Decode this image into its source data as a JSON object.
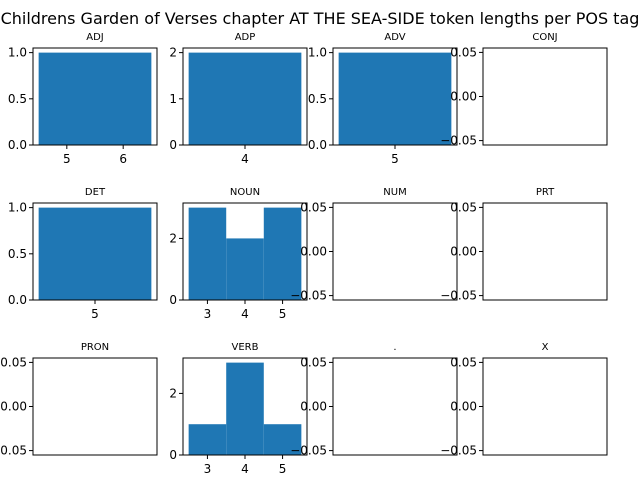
{
  "figure": {
    "title": "Childrens Garden of Verses chapter AT THE SEA-SIDE token lengths per POS tag"
  },
  "colors": {
    "bar": "#1f77b4",
    "axes": "#000000",
    "background": "#ffffff"
  },
  "chart_data": [
    {
      "type": "bar",
      "title": "ADJ",
      "bins": [
        4.5,
        5.5,
        6.5
      ],
      "counts": [
        1,
        1
      ],
      "xticks": [
        5,
        6
      ],
      "yticks": [
        0.0,
        0.5,
        1.0
      ],
      "ytick_labels": [
        "0.0",
        "0.5",
        "1.0"
      ],
      "xlim": [
        4.4,
        6.6
      ],
      "ylim": [
        0,
        1.05
      ]
    },
    {
      "type": "bar",
      "title": "ADP",
      "bins": [
        3.5,
        4.5
      ],
      "counts": [
        2
      ],
      "xticks": [
        4
      ],
      "yticks": [
        0,
        1,
        2
      ],
      "ytick_labels": [
        "0",
        "1",
        "2"
      ],
      "xlim": [
        3.45,
        4.55
      ],
      "ylim": [
        0,
        2.1
      ]
    },
    {
      "type": "bar",
      "title": "ADV",
      "bins": [
        4.5,
        5.5
      ],
      "counts": [
        1
      ],
      "xticks": [
        5
      ],
      "yticks": [
        0.0,
        0.5,
        1.0
      ],
      "ytick_labels": [
        "0.0",
        "0.5",
        "1.0"
      ],
      "xlim": [
        4.45,
        5.55
      ],
      "ylim": [
        0,
        1.05
      ]
    },
    {
      "type": "bar",
      "title": "CONJ",
      "bins": [],
      "counts": [],
      "xticks": [],
      "yticks": [
        -0.05,
        0.0,
        0.05
      ],
      "ytick_labels": [
        "−0.05",
        "0.00",
        "0.05"
      ],
      "xlim": [
        0,
        1
      ],
      "ylim": [
        -0.055,
        0.055
      ]
    },
    {
      "type": "bar",
      "title": "DET",
      "bins": [
        4.5,
        5.5
      ],
      "counts": [
        1
      ],
      "xticks": [
        5
      ],
      "yticks": [
        0.0,
        0.5,
        1.0
      ],
      "ytick_labels": [
        "0.0",
        "0.5",
        "1.0"
      ],
      "xlim": [
        4.45,
        5.55
      ],
      "ylim": [
        0,
        1.05
      ]
    },
    {
      "type": "bar",
      "title": "NOUN",
      "bins": [
        2.5,
        3.5,
        4.5,
        5.5
      ],
      "counts": [
        3,
        2,
        3
      ],
      "xticks": [
        3,
        4,
        5
      ],
      "yticks": [
        0,
        2
      ],
      "ytick_labels": [
        "0",
        "2"
      ],
      "xlim": [
        2.35,
        5.65
      ],
      "ylim": [
        0,
        3.15
      ]
    },
    {
      "type": "bar",
      "title": "NUM",
      "bins": [],
      "counts": [],
      "xticks": [],
      "yticks": [
        -0.05,
        0.0,
        0.05
      ],
      "ytick_labels": [
        "−0.05",
        "0.00",
        "0.05"
      ],
      "xlim": [
        0,
        1
      ],
      "ylim": [
        -0.055,
        0.055
      ]
    },
    {
      "type": "bar",
      "title": "PRT",
      "bins": [],
      "counts": [],
      "xticks": [],
      "yticks": [
        -0.05,
        0.0,
        0.05
      ],
      "ytick_labels": [
        "−0.05",
        "0.00",
        "0.05"
      ],
      "xlim": [
        0,
        1
      ],
      "ylim": [
        -0.055,
        0.055
      ]
    },
    {
      "type": "bar",
      "title": "PRON",
      "bins": [],
      "counts": [],
      "xticks": [],
      "yticks": [
        -0.05,
        0.0,
        0.05
      ],
      "ytick_labels": [
        "−0.05",
        "0.00",
        "0.05"
      ],
      "xlim": [
        0,
        1
      ],
      "ylim": [
        -0.055,
        0.055
      ]
    },
    {
      "type": "bar",
      "title": "VERB",
      "bins": [
        2.5,
        3.5,
        4.5,
        5.5
      ],
      "counts": [
        1,
        3,
        1
      ],
      "xticks": [
        3,
        4,
        5
      ],
      "yticks": [
        0,
        2
      ],
      "ytick_labels": [
        "0",
        "2"
      ],
      "xlim": [
        2.35,
        5.65
      ],
      "ylim": [
        0,
        3.15
      ]
    },
    {
      "type": "bar",
      "title": ".",
      "bins": [],
      "counts": [],
      "xticks": [],
      "yticks": [
        -0.05,
        0.0,
        0.05
      ],
      "ytick_labels": [
        "−0.05",
        "0.00",
        "0.05"
      ],
      "xlim": [
        0,
        1
      ],
      "ylim": [
        -0.055,
        0.055
      ]
    },
    {
      "type": "bar",
      "title": "X",
      "bins": [],
      "counts": [],
      "xticks": [],
      "yticks": [
        -0.05,
        0.0,
        0.05
      ],
      "ytick_labels": [
        "−0.05",
        "0.00",
        "0.05"
      ],
      "xlim": [
        0,
        1
      ],
      "ylim": [
        -0.055,
        0.055
      ]
    }
  ]
}
